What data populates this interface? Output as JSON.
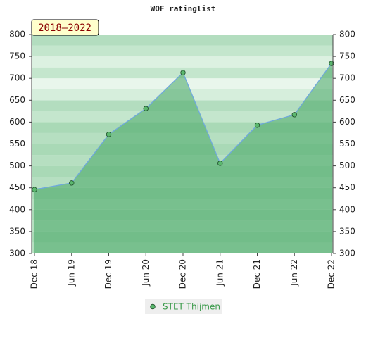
{
  "chart_data": {
    "type": "area",
    "title": "WOF ratinglist",
    "badge": "2018–2022",
    "categories": [
      "Dec 18",
      "Jun 19",
      "Dec 19",
      "Jun 20",
      "Dec 20",
      "Jun 21",
      "Dec 21",
      "Jun 22",
      "Dec 22"
    ],
    "series": [
      {
        "name": "STET Thijmen",
        "color": "#6fa8dc",
        "values": [
          446,
          461,
          572,
          631,
          713,
          506,
          593,
          617,
          734
        ]
      }
    ],
    "ylim": [
      300,
      800
    ],
    "yticks": [
      300,
      350,
      400,
      450,
      500,
      550,
      600,
      650,
      700,
      750,
      800
    ],
    "y2lim": [
      300,
      800
    ],
    "y2ticks": [
      300,
      350,
      400,
      450,
      500,
      550,
      600,
      650,
      700,
      750,
      800
    ],
    "legend": "bottom"
  }
}
